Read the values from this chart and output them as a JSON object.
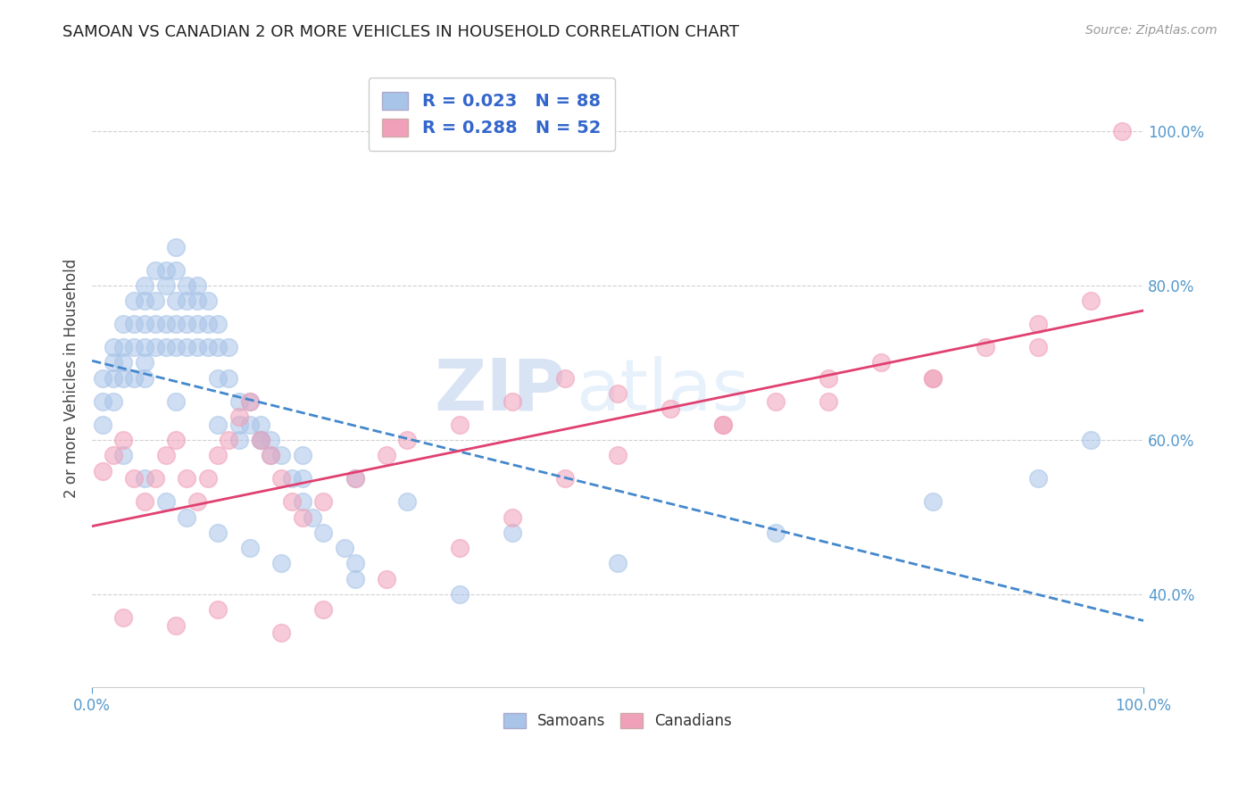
{
  "title": "SAMOAN VS CANADIAN 2 OR MORE VEHICLES IN HOUSEHOLD CORRELATION CHART",
  "source": "Source: ZipAtlas.com",
  "ylabel": "2 or more Vehicles in Household",
  "xlim": [
    0,
    100
  ],
  "ylim": [
    28,
    108
  ],
  "yticks": [
    40,
    60,
    80,
    100
  ],
  "ytick_labels": [
    "40.0%",
    "60.0%",
    "80.0%",
    "100.0%"
  ],
  "xtick_labels": [
    "0.0%",
    "100.0%"
  ],
  "samoans_R": 0.023,
  "samoans_N": 88,
  "canadians_R": 0.288,
  "canadians_N": 52,
  "samoan_color": "#a8c4e8",
  "canadian_color": "#f0a0b8",
  "samoan_line_color": "#4488cc",
  "canadian_line_color": "#e04070",
  "background_color": "#ffffff",
  "grid_color": "#cccccc",
  "tick_color": "#5599cc",
  "title_fontsize": 13,
  "label_fontsize": 12,
  "tick_fontsize": 12,
  "legend_fontsize": 14,
  "watermark_zip": "ZIP",
  "watermark_atlas": "atlas",
  "samoans_x": [
    1,
    1,
    1,
    2,
    2,
    2,
    2,
    3,
    3,
    3,
    3,
    4,
    4,
    4,
    4,
    5,
    5,
    5,
    5,
    5,
    6,
    6,
    6,
    6,
    7,
    7,
    7,
    7,
    8,
    8,
    8,
    8,
    8,
    9,
    9,
    9,
    9,
    10,
    10,
    10,
    10,
    11,
    11,
    11,
    12,
    12,
    12,
    13,
    13,
    14,
    14,
    14,
    15,
    15,
    16,
    16,
    17,
    17,
    18,
    19,
    20,
    20,
    21,
    22,
    24,
    25,
    3,
    5,
    7,
    9,
    12,
    15,
    18,
    25,
    35,
    50,
    65,
    80,
    90,
    95,
    5,
    8,
    12,
    16,
    20,
    25,
    30,
    40
  ],
  "samoans_y": [
    68,
    65,
    62,
    72,
    70,
    68,
    65,
    75,
    72,
    70,
    68,
    78,
    75,
    72,
    68,
    80,
    78,
    75,
    72,
    68,
    82,
    78,
    75,
    72,
    82,
    80,
    75,
    72,
    85,
    82,
    78,
    75,
    72,
    80,
    78,
    75,
    72,
    80,
    78,
    75,
    72,
    78,
    75,
    72,
    75,
    72,
    68,
    72,
    68,
    65,
    62,
    60,
    65,
    62,
    62,
    60,
    60,
    58,
    58,
    55,
    55,
    52,
    50,
    48,
    46,
    44,
    58,
    55,
    52,
    50,
    48,
    46,
    44,
    42,
    40,
    44,
    48,
    52,
    55,
    60,
    70,
    65,
    62,
    60,
    58,
    55,
    52,
    48
  ],
  "canadians_x": [
    1,
    2,
    3,
    4,
    5,
    6,
    7,
    8,
    9,
    10,
    11,
    12,
    13,
    14,
    15,
    16,
    17,
    18,
    19,
    20,
    22,
    25,
    28,
    30,
    35,
    40,
    45,
    50,
    55,
    60,
    65,
    70,
    75,
    80,
    85,
    90,
    95,
    3,
    8,
    12,
    18,
    22,
    28,
    35,
    40,
    45,
    50,
    60,
    70,
    80,
    90,
    98
  ],
  "canadians_y": [
    56,
    58,
    60,
    55,
    52,
    55,
    58,
    60,
    55,
    52,
    55,
    58,
    60,
    63,
    65,
    60,
    58,
    55,
    52,
    50,
    52,
    55,
    58,
    60,
    62,
    65,
    68,
    66,
    64,
    62,
    65,
    68,
    70,
    68,
    72,
    75,
    78,
    37,
    36,
    38,
    35,
    38,
    42,
    46,
    50,
    55,
    58,
    62,
    65,
    68,
    72,
    100
  ]
}
